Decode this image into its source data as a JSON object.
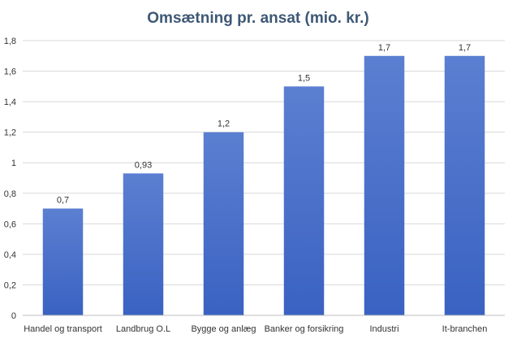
{
  "chart_data": {
    "type": "bar",
    "title": "Omsætning pr. ansat (mio. kr.)",
    "categories": [
      "Handel og transport",
      "Landbrug O.L",
      "Bygge og anlæg",
      "Banker og forsikring",
      "Industri",
      "It-branchen"
    ],
    "values": [
      0.7,
      0.93,
      1.2,
      1.5,
      1.7,
      1.7
    ],
    "value_labels": [
      "0,7",
      "0,93",
      "1,2",
      "1,5",
      "1,7",
      "1,7"
    ],
    "yticks": [
      0,
      0.2,
      0.4,
      0.6,
      0.8,
      1,
      1.2,
      1.4,
      1.6,
      1.8
    ],
    "ytick_labels": [
      "0",
      "0,2",
      "0,4",
      "0,6",
      "0,8",
      "1",
      "1,2",
      "1,4",
      "1,6",
      "1,8"
    ],
    "ylim": [
      0,
      1.8
    ],
    "grid": true,
    "legend": "none",
    "bar_color_top": "#5b7fd1",
    "bar_color_bottom": "#3a62c2"
  }
}
